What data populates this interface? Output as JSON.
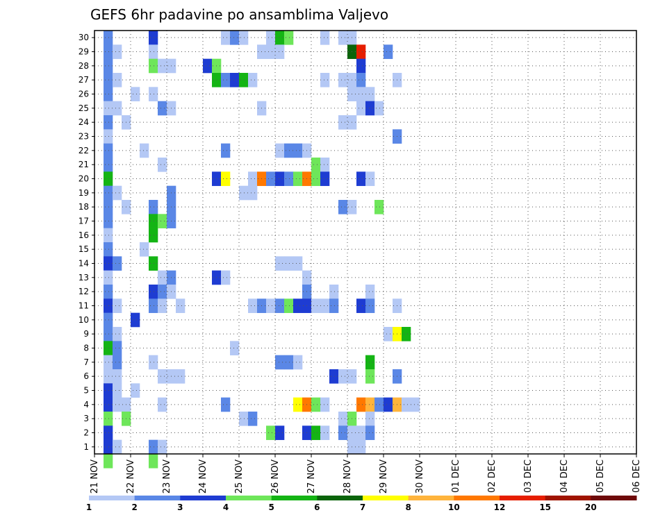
{
  "chart_data": {
    "type": "heatmap",
    "title": "GEFS 6hr padavine po ansamblima Valjevo",
    "x_ticks": [
      "21 NOV",
      "22 NOV",
      "23 NOV",
      "24 NOV",
      "25 NOV",
      "26 NOV",
      "27 NOV",
      "28 NOV",
      "29 NOV",
      "30 NOV",
      "01 DEC",
      "02 DEC",
      "03 DEC",
      "04 DEC",
      "05 DEC",
      "06 DEC"
    ],
    "y_ticks": [
      "1",
      "2",
      "3",
      "4",
      "5",
      "6",
      "7",
      "8",
      "9",
      "10",
      "11",
      "12",
      "13",
      "14",
      "15",
      "16",
      "17",
      "18",
      "19",
      "20",
      "21",
      "22",
      "23",
      "24",
      "25",
      "26",
      "27",
      "28",
      "29",
      "30"
    ],
    "ylim": [
      1,
      30
    ],
    "steps_per_day": 4,
    "step_hours": 6,
    "grid": "dotted",
    "colorbar": {
      "levels": [
        "1",
        "2",
        "3",
        "4",
        "5",
        "6",
        "7",
        "8",
        "10",
        "12",
        "15",
        "20"
      ],
      "colors": [
        "#b4c8f5",
        "#5a87e6",
        "#1e3cd2",
        "#6ee65a",
        "#14b414",
        "#0a640a",
        "#ffff00",
        "#ffb43c",
        "#ff7800",
        "#e61e00",
        "#a01400",
        "#6e0a0a"
      ]
    },
    "cells": [
      [
        30,
        1,
        2
      ],
      [
        30,
        6,
        3
      ],
      [
        30,
        14,
        1
      ],
      [
        30,
        15,
        2
      ],
      [
        30,
        16,
        1
      ],
      [
        30,
        19,
        1
      ],
      [
        30,
        20,
        5
      ],
      [
        30,
        21,
        4
      ],
      [
        30,
        25,
        1
      ],
      [
        30,
        27,
        1
      ],
      [
        30,
        28,
        1
      ],
      [
        29,
        1,
        2
      ],
      [
        29,
        2,
        1
      ],
      [
        29,
        6,
        1
      ],
      [
        29,
        18,
        1
      ],
      [
        29,
        19,
        1
      ],
      [
        29,
        20,
        1
      ],
      [
        29,
        28,
        6
      ],
      [
        29,
        29,
        10
      ],
      [
        29,
        32,
        2
      ],
      [
        28,
        1,
        2
      ],
      [
        28,
        6,
        4
      ],
      [
        28,
        7,
        1
      ],
      [
        28,
        8,
        1
      ],
      [
        28,
        12,
        3
      ],
      [
        28,
        13,
        4
      ],
      [
        28,
        29,
        3
      ],
      [
        27,
        1,
        2
      ],
      [
        27,
        2,
        1
      ],
      [
        27,
        13,
        5
      ],
      [
        27,
        14,
        2
      ],
      [
        27,
        15,
        3
      ],
      [
        27,
        16,
        5
      ],
      [
        27,
        17,
        1
      ],
      [
        27,
        25,
        1
      ],
      [
        27,
        27,
        1
      ],
      [
        27,
        28,
        1
      ],
      [
        27,
        29,
        2
      ],
      [
        27,
        33,
        1
      ],
      [
        26,
        1,
        2
      ],
      [
        26,
        4,
        1
      ],
      [
        26,
        6,
        1
      ],
      [
        26,
        28,
        1
      ],
      [
        26,
        29,
        1
      ],
      [
        26,
        30,
        1
      ],
      [
        25,
        1,
        1
      ],
      [
        25,
        2,
        1
      ],
      [
        25,
        7,
        2
      ],
      [
        25,
        8,
        1
      ],
      [
        25,
        18,
        1
      ],
      [
        25,
        29,
        1
      ],
      [
        25,
        30,
        3
      ],
      [
        25,
        31,
        1
      ],
      [
        24,
        1,
        2
      ],
      [
        24,
        3,
        1
      ],
      [
        24,
        27,
        1
      ],
      [
        24,
        28,
        1
      ],
      [
        23,
        1,
        1
      ],
      [
        23,
        33,
        2
      ],
      [
        22,
        1,
        2
      ],
      [
        22,
        5,
        1
      ],
      [
        22,
        14,
        2
      ],
      [
        22,
        20,
        1
      ],
      [
        22,
        21,
        2
      ],
      [
        22,
        22,
        2
      ],
      [
        22,
        23,
        1
      ],
      [
        21,
        1,
        2
      ],
      [
        21,
        7,
        1
      ],
      [
        21,
        24,
        4
      ],
      [
        21,
        25,
        1
      ],
      [
        20,
        1,
        5
      ],
      [
        20,
        13,
        3
      ],
      [
        20,
        14,
        7
      ],
      [
        20,
        17,
        1
      ],
      [
        20,
        18,
        9
      ],
      [
        20,
        19,
        2
      ],
      [
        20,
        20,
        3
      ],
      [
        20,
        21,
        2
      ],
      [
        20,
        22,
        4
      ],
      [
        20,
        23,
        9
      ],
      [
        20,
        24,
        4
      ],
      [
        20,
        25,
        3
      ],
      [
        20,
        29,
        3
      ],
      [
        20,
        30,
        1
      ],
      [
        19,
        1,
        2
      ],
      [
        19,
        2,
        1
      ],
      [
        19,
        8,
        2
      ],
      [
        19,
        16,
        1
      ],
      [
        19,
        17,
        1
      ],
      [
        18,
        1,
        2
      ],
      [
        18,
        3,
        1
      ],
      [
        18,
        6,
        2
      ],
      [
        18,
        8,
        2
      ],
      [
        18,
        27,
        2
      ],
      [
        18,
        28,
        1
      ],
      [
        18,
        31,
        4
      ],
      [
        17,
        1,
        2
      ],
      [
        17,
        6,
        5
      ],
      [
        17,
        7,
        4
      ],
      [
        17,
        8,
        2
      ],
      [
        16,
        1,
        1
      ],
      [
        16,
        6,
        5
      ],
      [
        15,
        1,
        2
      ],
      [
        15,
        5,
        1
      ],
      [
        14,
        1,
        3
      ],
      [
        14,
        2,
        2
      ],
      [
        14,
        6,
        5
      ],
      [
        14,
        20,
        1
      ],
      [
        14,
        21,
        1
      ],
      [
        14,
        22,
        1
      ],
      [
        13,
        1,
        1
      ],
      [
        13,
        7,
        1
      ],
      [
        13,
        8,
        2
      ],
      [
        13,
        13,
        3
      ],
      [
        13,
        14,
        1
      ],
      [
        13,
        23,
        1
      ],
      [
        12,
        1,
        2
      ],
      [
        12,
        6,
        3
      ],
      [
        12,
        7,
        2
      ],
      [
        12,
        8,
        1
      ],
      [
        12,
        23,
        2
      ],
      [
        12,
        26,
        1
      ],
      [
        12,
        30,
        1
      ],
      [
        11,
        1,
        3
      ],
      [
        11,
        2,
        1
      ],
      [
        11,
        6,
        2
      ],
      [
        11,
        7,
        1
      ],
      [
        11,
        9,
        1
      ],
      [
        11,
        17,
        1
      ],
      [
        11,
        18,
        2
      ],
      [
        11,
        19,
        1
      ],
      [
        11,
        20,
        2
      ],
      [
        11,
        21,
        4
      ],
      [
        11,
        22,
        3
      ],
      [
        11,
        23,
        3
      ],
      [
        11,
        24,
        1
      ],
      [
        11,
        25,
        1
      ],
      [
        11,
        26,
        2
      ],
      [
        11,
        29,
        3
      ],
      [
        11,
        30,
        2
      ],
      [
        11,
        33,
        1
      ],
      [
        10,
        1,
        2
      ],
      [
        10,
        4,
        3
      ],
      [
        9,
        1,
        2
      ],
      [
        9,
        2,
        1
      ],
      [
        9,
        32,
        1
      ],
      [
        9,
        33,
        7
      ],
      [
        9,
        34,
        5
      ],
      [
        8,
        1,
        5
      ],
      [
        8,
        2,
        2
      ],
      [
        8,
        15,
        1
      ],
      [
        7,
        1,
        1
      ],
      [
        7,
        2,
        2
      ],
      [
        7,
        6,
        1
      ],
      [
        7,
        20,
        2
      ],
      [
        7,
        21,
        2
      ],
      [
        7,
        22,
        1
      ],
      [
        7,
        30,
        5
      ],
      [
        6,
        1,
        1
      ],
      [
        6,
        2,
        1
      ],
      [
        6,
        7,
        1
      ],
      [
        6,
        8,
        1
      ],
      [
        6,
        9,
        1
      ],
      [
        6,
        26,
        3
      ],
      [
        6,
        27,
        1
      ],
      [
        6,
        28,
        1
      ],
      [
        6,
        30,
        4
      ],
      [
        6,
        33,
        2
      ],
      [
        5,
        1,
        3
      ],
      [
        5,
        2,
        1
      ],
      [
        5,
        4,
        1
      ],
      [
        4,
        1,
        3
      ],
      [
        4,
        2,
        1
      ],
      [
        4,
        3,
        1
      ],
      [
        4,
        7,
        1
      ],
      [
        4,
        14,
        2
      ],
      [
        4,
        22,
        7
      ],
      [
        4,
        23,
        9
      ],
      [
        4,
        24,
        4
      ],
      [
        4,
        25,
        1
      ],
      [
        4,
        29,
        9
      ],
      [
        4,
        30,
        8
      ],
      [
        4,
        31,
        2
      ],
      [
        4,
        32,
        3
      ],
      [
        4,
        33,
        8
      ],
      [
        4,
        34,
        1
      ],
      [
        4,
        35,
        1
      ],
      [
        3,
        1,
        4
      ],
      [
        3,
        3,
        4
      ],
      [
        3,
        16,
        1
      ],
      [
        3,
        17,
        2
      ],
      [
        3,
        27,
        1
      ],
      [
        3,
        28,
        4
      ],
      [
        3,
        30,
        1
      ],
      [
        2,
        1,
        3
      ],
      [
        2,
        19,
        4
      ],
      [
        2,
        20,
        3
      ],
      [
        2,
        23,
        3
      ],
      [
        2,
        24,
        5
      ],
      [
        2,
        25,
        1
      ],
      [
        2,
        27,
        2
      ],
      [
        2,
        28,
        1
      ],
      [
        2,
        29,
        1
      ],
      [
        2,
        30,
        2
      ],
      [
        1,
        1,
        3
      ],
      [
        1,
        2,
        1
      ],
      [
        1,
        6,
        2
      ],
      [
        1,
        7,
        1
      ],
      [
        1,
        28,
        1
      ],
      [
        1,
        29,
        1
      ],
      [
        0,
        1,
        4
      ],
      [
        0,
        6,
        4
      ]
    ]
  }
}
